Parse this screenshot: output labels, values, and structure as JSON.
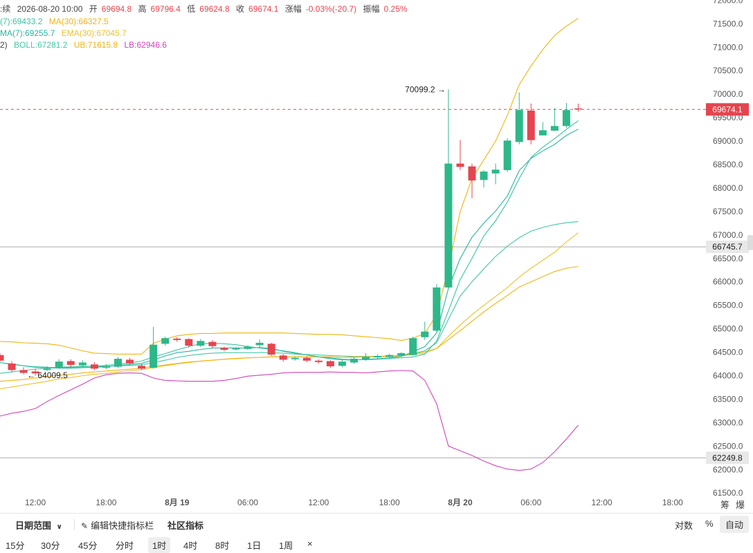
{
  "info": {
    "line1": {
      "prefix": ":续",
      "datetime": "2026-08-20 10:00",
      "open_label": "开",
      "open": "69694.8",
      "high_label": "高",
      "high": "69796.4",
      "low_label": "低",
      "low": "69624.8",
      "close_label": "收",
      "close": "69674.1",
      "change_label": "涨幅",
      "change": "-0.03%(-20.7)",
      "amp_label": "振幅",
      "amp": "0.25%"
    },
    "line2": {
      "ma7": "(7):69433.2",
      "ma30": "MA(30):66327.5"
    },
    "line3": {
      "ema7": "MA(7):69255.7",
      "ema30": "EMA(30):67045.7"
    },
    "line4": {
      "boll_prefix": "2)",
      "boll": "BOLL:67281.2",
      "ub": "UB:71615.8",
      "lb": "LB:62946.6"
    }
  },
  "colors": {
    "up": "#2eb789",
    "down": "#e5454f",
    "ma7": "#35c4a4",
    "ema7": "#28b3a0",
    "ma30": "#f2b211",
    "ema30": "#ecc12a",
    "boll": "#44c6a6",
    "ub": "#f0b40e",
    "lb": "#d144b8"
  },
  "chart_data": {
    "type": "candlestick",
    "ylim": [
      61400,
      72300
    ],
    "yticks": [
      72000,
      71500,
      71000,
      70500,
      70000,
      69500,
      69000,
      68500,
      68000,
      67500,
      67000,
      66500,
      66000,
      65500,
      65000,
      64500,
      64000,
      63500,
      63000,
      62500,
      62000,
      61500
    ],
    "ytick_labels": [
      "72000.0",
      "71500.0",
      "71000.0",
      "70500.0",
      "70000.0",
      "69500.0",
      "69000.0",
      "68500.0",
      "68000.0",
      "67500.0",
      "67000.0",
      "66500.0",
      "66000.0",
      "65500.0",
      "65000.0",
      "64500.0",
      "64000.0",
      "63500.0",
      "63000.0",
      "62500.0",
      "62000.0",
      "61500.0"
    ],
    "xtick_labels": [
      {
        "i": 3,
        "label": "12:00"
      },
      {
        "i": 9,
        "label": "18:00"
      },
      {
        "i": 15,
        "label": "8月 19"
      },
      {
        "i": 21,
        "label": "06:00"
      },
      {
        "i": 27,
        "label": "12:00"
      },
      {
        "i": 33,
        "label": "18:00"
      },
      {
        "i": 39,
        "label": "8月 20"
      },
      {
        "i": 45,
        "label": "06:00"
      },
      {
        "i": 51,
        "label": "12:00"
      },
      {
        "i": 57,
        "label": "18:00"
      }
    ],
    "candles": [
      [
        64440,
        64320,
        64480,
        64300
      ],
      [
        64260,
        64120,
        64310,
        64080
      ],
      [
        64120,
        64060,
        64180,
        64030
      ],
      [
        64090,
        64050,
        64150,
        64000
      ],
      [
        64120,
        64150,
        64200,
        64100
      ],
      [
        64180,
        64300,
        64350,
        64150
      ],
      [
        64310,
        64230,
        64350,
        64180
      ],
      [
        64220,
        64280,
        64330,
        64180
      ],
      [
        64240,
        64150,
        64290,
        64120
      ],
      [
        64170,
        64200,
        64250,
        64140
      ],
      [
        64190,
        64360,
        64400,
        64170
      ],
      [
        64340,
        64260,
        64380,
        64220
      ],
      [
        64210,
        64150,
        64250,
        64120
      ],
      [
        64170,
        64660,
        65040,
        64150
      ],
      [
        64680,
        64800,
        64830,
        64640
      ],
      [
        64790,
        64760,
        64820,
        64720
      ],
      [
        64780,
        64640,
        64800,
        64600
      ],
      [
        64640,
        64740,
        64780,
        64610
      ],
      [
        64720,
        64630,
        64760,
        64590
      ],
      [
        64590,
        64550,
        64620,
        64520
      ],
      [
        64560,
        64580,
        64610,
        64540
      ],
      [
        64570,
        64620,
        64650,
        64550
      ],
      [
        64650,
        64700,
        64770,
        64600
      ],
      [
        64680,
        64450,
        64700,
        64420
      ],
      [
        64430,
        64340,
        64460,
        64300
      ],
      [
        64350,
        64380,
        64400,
        64320
      ],
      [
        64380,
        64320,
        64410,
        64290
      ],
      [
        64320,
        64290,
        64350,
        64260
      ],
      [
        64310,
        64200,
        64330,
        64170
      ],
      [
        64210,
        64300,
        64330,
        64180
      ],
      [
        64280,
        64360,
        64390,
        64250
      ],
      [
        64350,
        64400,
        64480,
        64320
      ],
      [
        64390,
        64420,
        64460,
        64360
      ],
      [
        64400,
        64440,
        64470,
        64380
      ],
      [
        64430,
        64480,
        64500,
        64400
      ],
      [
        64440,
        64800,
        64830,
        64430
      ],
      [
        64820,
        64940,
        65150,
        64760
      ],
      [
        64960,
        65880,
        65950,
        64940
      ],
      [
        65880,
        68520,
        70099.2,
        65850
      ],
      [
        68520,
        68450,
        69020,
        68380
      ],
      [
        68460,
        68160,
        68520,
        67780
      ],
      [
        68170,
        68350,
        68380,
        68010
      ],
      [
        68310,
        68390,
        68520,
        68080
      ],
      [
        68380,
        69010,
        69060,
        68340
      ],
      [
        68980,
        69660,
        70040,
        68930
      ],
      [
        69650,
        69020,
        69800,
        68930
      ],
      [
        69120,
        69230,
        69400,
        69150
      ],
      [
        69220,
        69320,
        69700,
        69240
      ],
      [
        69320,
        69660,
        69810,
        69280
      ],
      [
        69694.8,
        69674.1,
        69796.4,
        69624.8
      ]
    ],
    "series": [
      {
        "id": "ma7",
        "values": [
          64280,
          64240,
          64210,
          64190,
          64180,
          64170,
          64180,
          64190,
          64200,
          64220,
          64250,
          64270,
          64310,
          64400,
          64470,
          64550,
          64620,
          64680,
          64690,
          64680,
          64660,
          64620,
          64590,
          64560,
          64530,
          64490,
          64440,
          64400,
          64380,
          64350,
          64340,
          64340,
          64350,
          64370,
          64380,
          64400,
          64460,
          64740,
          65380,
          66050,
          66500,
          66980,
          67300,
          67700,
          68200,
          68650,
          68870,
          69050,
          69250,
          69433.2
        ]
      },
      {
        "id": "ema7",
        "values": [
          64280,
          64250,
          64210,
          64180,
          64170,
          64160,
          64160,
          64170,
          64180,
          64190,
          64220,
          64240,
          64260,
          64340,
          64420,
          64490,
          64520,
          64560,
          64590,
          64590,
          64590,
          64590,
          64600,
          64580,
          64520,
          64480,
          64440,
          64400,
          64360,
          64340,
          64330,
          64350,
          64360,
          64380,
          64410,
          64510,
          64620,
          64910,
          65860,
          66500,
          66950,
          67250,
          67510,
          67830,
          68370,
          68630,
          68790,
          68930,
          69120,
          69255.7
        ]
      },
      {
        "id": "ma30",
        "values": [
          63880,
          63900,
          63920,
          63950,
          63980,
          64010,
          64030,
          64060,
          64080,
          64100,
          64120,
          64140,
          64160,
          64200,
          64230,
          64260,
          64290,
          64310,
          64330,
          64350,
          64370,
          64380,
          64390,
          64400,
          64400,
          64400,
          64400,
          64400,
          64400,
          64390,
          64400,
          64400,
          64410,
          64420,
          64430,
          64460,
          64510,
          64580,
          64770,
          64960,
          65160,
          65360,
          65540,
          65710,
          65890,
          66000,
          66110,
          66220,
          66290,
          66327.5
        ]
      },
      {
        "id": "ema30",
        "values": [
          63720,
          63760,
          63800,
          63840,
          63880,
          63930,
          63960,
          64000,
          64030,
          64050,
          64080,
          64110,
          64130,
          64170,
          64210,
          64250,
          64280,
          64310,
          64330,
          64350,
          64360,
          64380,
          64390,
          64400,
          64400,
          64400,
          64400,
          64400,
          64400,
          64390,
          64390,
          64400,
          64400,
          64410,
          64420,
          64450,
          64480,
          64580,
          64840,
          65080,
          65300,
          65500,
          65690,
          65880,
          66100,
          66290,
          66460,
          66630,
          66850,
          67045.7
        ]
      },
      {
        "id": "boll",
        "values": [
          64050,
          64080,
          64110,
          64140,
          64160,
          64180,
          64190,
          64200,
          64200,
          64200,
          64210,
          64220,
          64230,
          64280,
          64330,
          64390,
          64430,
          64460,
          64480,
          64490,
          64490,
          64490,
          64490,
          64490,
          64480,
          64460,
          64450,
          64440,
          64430,
          64420,
          64410,
          64410,
          64410,
          64420,
          64430,
          64470,
          64530,
          64700,
          65200,
          65700,
          66000,
          66280,
          66540,
          66760,
          66940,
          67080,
          67160,
          67220,
          67260,
          67281.2
        ]
      },
      {
        "id": "ub",
        "values": [
          64730,
          64720,
          64700,
          64690,
          64680,
          64650,
          64590,
          64530,
          64480,
          64470,
          64460,
          64460,
          64460,
          64690,
          64780,
          64850,
          64880,
          64900,
          64900,
          64910,
          64910,
          64910,
          64910,
          64910,
          64910,
          64900,
          64890,
          64880,
          64880,
          64870,
          64850,
          64830,
          64810,
          64790,
          64750,
          64800,
          64900,
          65300,
          66300,
          67500,
          68200,
          68600,
          69000,
          69550,
          70200,
          70600,
          70950,
          71250,
          71450,
          71615.8
        ]
      },
      {
        "id": "lb",
        "values": [
          63140,
          63200,
          63240,
          63300,
          63450,
          63580,
          63700,
          63820,
          63950,
          64020,
          64050,
          64060,
          64050,
          63950,
          63900,
          63890,
          63880,
          63880,
          63880,
          63900,
          63940,
          63990,
          64010,
          64030,
          64060,
          64070,
          64070,
          64070,
          64080,
          64070,
          64070,
          64060,
          64080,
          64100,
          64110,
          64100,
          63900,
          63400,
          62500,
          62400,
          62300,
          62180,
          62080,
          62010,
          61980,
          62010,
          62150,
          62380,
          62650,
          62946.6
        ]
      }
    ],
    "last_price": 69674.1,
    "last_price_label": "69674.1",
    "guides": [
      {
        "value": 66745.7,
        "label": "66745.7"
      },
      {
        "value": 62249.8,
        "label": "62249.8"
      }
    ],
    "annotations": [
      {
        "i": 38,
        "value": 70099.2,
        "label": "70099.2 →",
        "side": "left"
      },
      {
        "i": 2,
        "value": 64009.5,
        "label": "← 64009.5",
        "side": "right"
      }
    ]
  },
  "corner": {
    "a": "筹",
    "b": "爆"
  },
  "toolbar": {
    "date_range": "日期范围",
    "edit_indicators": "编辑快捷指标栏",
    "community_indicators": "社区指标",
    "log_scale": "对数",
    "percent": "%",
    "auto": "自动",
    "periods": [
      "15分",
      "30分",
      "45分",
      "分时",
      "1时",
      "4时",
      "8时",
      "1日",
      "1周"
    ],
    "active_period": 4,
    "close_symbol": "×"
  }
}
